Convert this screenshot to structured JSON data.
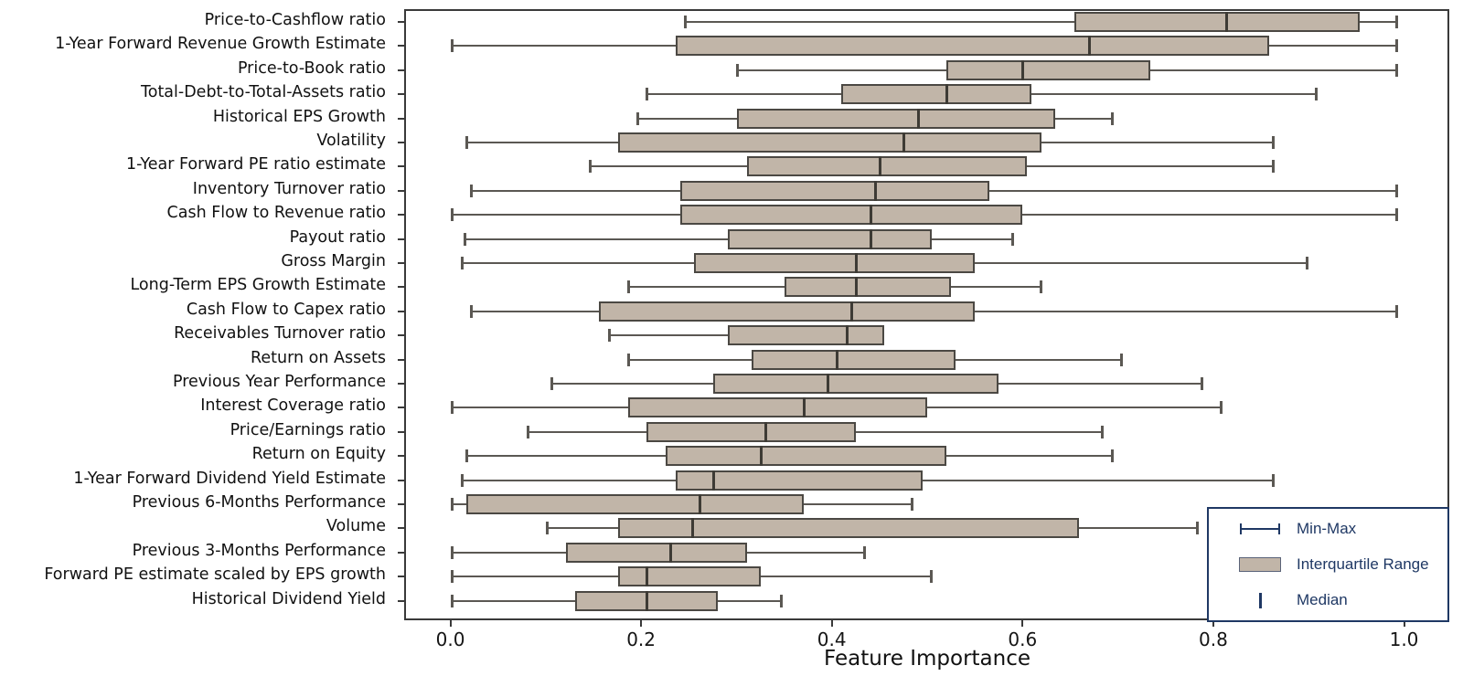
{
  "chart_data": {
    "type": "boxplot",
    "orientation": "horizontal",
    "title": "",
    "xlabel": "Feature Importance",
    "ylabel": "",
    "xlim": [
      -0.048,
      1.06
    ],
    "x_ticks": [
      0.0,
      0.2,
      0.4,
      0.6,
      0.8,
      1.0
    ],
    "x_tick_labels": [
      "0.0",
      "0.2",
      "0.4",
      "0.6",
      "0.8",
      "1.0"
    ],
    "grid": false,
    "legend_position": "lower right",
    "legend_entries": [
      {
        "label": "Min-Max",
        "glyph": "whisker-line"
      },
      {
        "label": "Interquartile Range",
        "glyph": "filled-box"
      },
      {
        "label": "Median",
        "glyph": "vertical-bar"
      }
    ],
    "features": [
      {
        "name": "Price-to-Cashflow ratio",
        "min": 0.245,
        "q1": 0.655,
        "median": 0.815,
        "q3": 0.955,
        "max": 0.995
      },
      {
        "name": "1-Year Forward Revenue Growth Estimate",
        "min": 0.0,
        "q1": 0.235,
        "median": 0.67,
        "q3": 0.86,
        "max": 0.995
      },
      {
        "name": "Price-to-Book ratio",
        "min": 0.3,
        "q1": 0.52,
        "median": 0.6,
        "q3": 0.735,
        "max": 0.995
      },
      {
        "name": "Total-Debt-to-Total-Assets ratio",
        "min": 0.205,
        "q1": 0.41,
        "median": 0.52,
        "q3": 0.61,
        "max": 0.91
      },
      {
        "name": "Historical EPS Growth",
        "min": 0.195,
        "q1": 0.3,
        "median": 0.49,
        "q3": 0.635,
        "max": 0.695
      },
      {
        "name": "Volatility",
        "min": 0.015,
        "q1": 0.175,
        "median": 0.475,
        "q3": 0.62,
        "max": 0.865
      },
      {
        "name": "1-Year Forward PE ratio estimate",
        "min": 0.145,
        "q1": 0.31,
        "median": 0.45,
        "q3": 0.605,
        "max": 0.865
      },
      {
        "name": "Inventory Turnover ratio",
        "min": 0.02,
        "q1": 0.24,
        "median": 0.445,
        "q3": 0.565,
        "max": 0.995
      },
      {
        "name": "Cash Flow to Revenue ratio",
        "min": 0.0,
        "q1": 0.24,
        "median": 0.44,
        "q3": 0.6,
        "max": 0.995
      },
      {
        "name": "Payout ratio",
        "min": 0.013,
        "q1": 0.29,
        "median": 0.44,
        "q3": 0.505,
        "max": 0.59
      },
      {
        "name": "Gross Margin",
        "min": 0.01,
        "q1": 0.255,
        "median": 0.425,
        "q3": 0.55,
        "max": 0.9
      },
      {
        "name": "Long-Term EPS Growth Estimate",
        "min": 0.185,
        "q1": 0.35,
        "median": 0.425,
        "q3": 0.525,
        "max": 0.62
      },
      {
        "name": "Cash Flow to Capex ratio",
        "min": 0.02,
        "q1": 0.155,
        "median": 0.42,
        "q3": 0.55,
        "max": 0.995
      },
      {
        "name": "Receivables Turnover ratio",
        "min": 0.165,
        "q1": 0.29,
        "median": 0.415,
        "q3": 0.455,
        "max": 0.455
      },
      {
        "name": "Return on Assets",
        "min": 0.185,
        "q1": 0.315,
        "median": 0.405,
        "q3": 0.53,
        "max": 0.705
      },
      {
        "name": "Previous Year Performance",
        "min": 0.105,
        "q1": 0.275,
        "median": 0.395,
        "q3": 0.575,
        "max": 0.79
      },
      {
        "name": "Interest Coverage ratio",
        "min": 0.0,
        "q1": 0.185,
        "median": 0.37,
        "q3": 0.5,
        "max": 0.81
      },
      {
        "name": "Price/Earnings ratio",
        "min": 0.08,
        "q1": 0.205,
        "median": 0.33,
        "q3": 0.425,
        "max": 0.685
      },
      {
        "name": "Return on Equity",
        "min": 0.015,
        "q1": 0.225,
        "median": 0.325,
        "q3": 0.52,
        "max": 0.695
      },
      {
        "name": "1-Year Forward Dividend Yield Estimate",
        "min": 0.01,
        "q1": 0.235,
        "median": 0.275,
        "q3": 0.495,
        "max": 0.865
      },
      {
        "name": "Previous 6-Months Performance",
        "min": 0.0,
        "q1": 0.015,
        "median": 0.26,
        "q3": 0.37,
        "max": 0.485
      },
      {
        "name": "Volume",
        "min": 0.1,
        "q1": 0.175,
        "median": 0.253,
        "q3": 0.66,
        "max": 0.785
      },
      {
        "name": "Previous 3-Months Performance",
        "min": 0.0,
        "q1": 0.12,
        "median": 0.23,
        "q3": 0.31,
        "max": 0.435
      },
      {
        "name": "Forward PE estimate scaled by EPS growth",
        "min": 0.0,
        "q1": 0.175,
        "median": 0.205,
        "q3": 0.325,
        "max": 0.505
      },
      {
        "name": "Historical Dividend Yield",
        "min": 0.0,
        "q1": 0.13,
        "median": 0.205,
        "q3": 0.28,
        "max": 0.347
      }
    ]
  },
  "colors": {
    "box_fill": "#c1b5a8",
    "box_border": "#4b4843",
    "whisker": "#5b5853",
    "median_line": "#3e3b35",
    "frame": "#3a3a3a",
    "legend_accent": "#1f3864",
    "text": "#111111",
    "background": "#ffffff"
  }
}
